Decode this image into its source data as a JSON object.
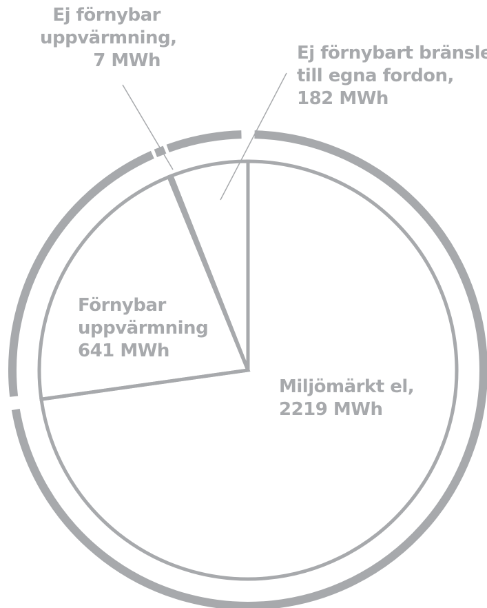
{
  "chart_data": {
    "type": "pie",
    "title": "",
    "unit": "MWh",
    "slices": [
      {
        "label": "Miljömärkt el",
        "value": 2219,
        "label_lines": [
          "Miljömärkt el,",
          "2219 MWh"
        ]
      },
      {
        "label": "Förnybar uppvärmning",
        "value": 641,
        "label_lines": [
          "Förnybar",
          "uppvärmning",
          "641 MWh"
        ]
      },
      {
        "label": "Ej förnybar uppvärmning",
        "value": 7,
        "label_lines": [
          "Ej förnybar",
          "uppvärmning,",
          "7 MWh"
        ]
      },
      {
        "label": "Ej förnybart bränsle till egna fordon",
        "value": 182,
        "label_lines": [
          "Ej förnybart bränsle",
          "till egna fordon,",
          "182 MWh"
        ]
      }
    ],
    "colors": {
      "stroke": "#a7a9ac",
      "text": "#a7a9ac",
      "background": "#ffffff"
    }
  }
}
